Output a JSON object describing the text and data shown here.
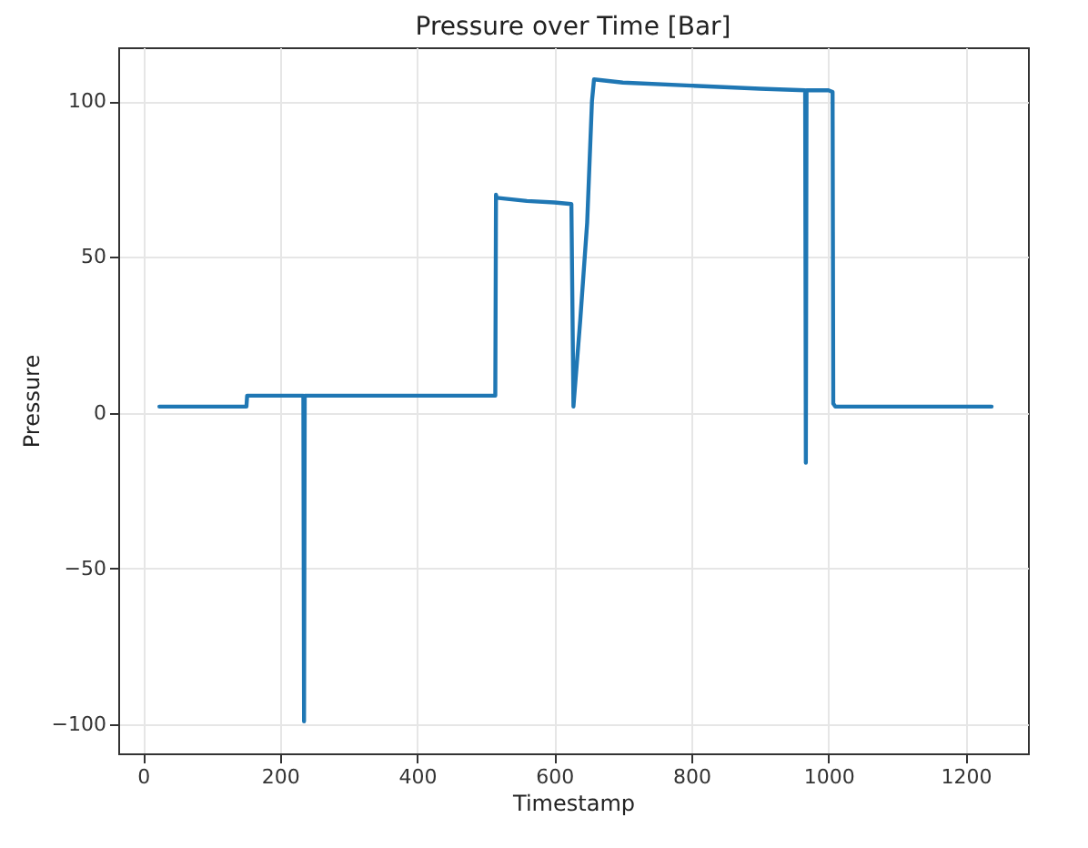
{
  "chart_data": {
    "type": "line",
    "title": "Pressure over Time [Bar]",
    "xlabel": "Timestamp",
    "ylabel": "Pressure",
    "series": [
      {
        "color": "#1f77b4",
        "x": [
          24,
          80,
          151,
          152,
          200,
          234,
          235,
          236,
          300,
          400,
          514,
          515,
          516,
          560,
          600,
          625,
          628,
          638,
          648,
          655,
          658,
          700,
          800,
          900,
          966,
          967,
          968,
          1000,
          1006,
          1007,
          1010,
          1100,
          1200,
          1238
        ],
        "values": [
          2,
          2,
          2,
          5.5,
          5.5,
          5.5,
          -99,
          5.5,
          5.5,
          5.5,
          5.5,
          70,
          69,
          68,
          67.5,
          67,
          2,
          30,
          61,
          100,
          107,
          106,
          105,
          104,
          103.5,
          -16,
          103.5,
          103.5,
          103,
          3,
          2,
          2,
          2,
          2
        ]
      }
    ],
    "xlim": [
      -36,
      1291
    ],
    "ylim": [
      -109.3,
      117.3
    ],
    "xticks": [
      0,
      200,
      400,
      600,
      800,
      1000,
      1200
    ],
    "yticks": [
      -100,
      -50,
      0,
      50,
      100
    ],
    "grid": true,
    "marker": "none",
    "line_style": "solid"
  }
}
